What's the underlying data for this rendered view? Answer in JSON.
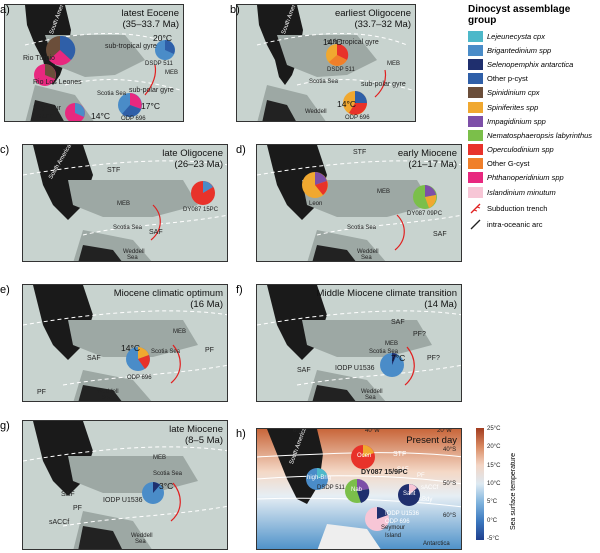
{
  "legend": {
    "title_line1": "Dinocyst assemblage",
    "title_line2": "group",
    "items": [
      {
        "label": "Lejeunecysta cpx",
        "color": "#4db8c9",
        "italic": true
      },
      {
        "label": "Brigantedinium spp",
        "color": "#4a8cc8",
        "italic": true
      },
      {
        "label": "Selenopemphix antarctica",
        "color": "#1f2f6e",
        "italic": true
      },
      {
        "label": "Other p-cyst",
        "color": "#2f5fa8",
        "italic": false
      },
      {
        "label": "Spinidinium cpx",
        "color": "#6b4e3a",
        "italic": true
      },
      {
        "label": "Spiniferites spp",
        "color": "#f0a830",
        "italic": true
      },
      {
        "label": "Impagidinium spp",
        "color": "#7d4fa8",
        "italic": true
      },
      {
        "label": "Nematosphaeropsis labyrinthus",
        "color": "#7bbf4a",
        "italic": true
      },
      {
        "label": "Operculodinium spp",
        "color": "#e8322a",
        "italic": true
      },
      {
        "label": "Other G-cyst",
        "color": "#f07f2a",
        "italic": false
      },
      {
        "label": "Phthanoperidinium spp",
        "color": "#e8287f",
        "italic": true
      },
      {
        "label": "Islandinium minutum",
        "color": "#f7c6d6",
        "italic": true
      }
    ],
    "subduction": "Subduction trench",
    "arc": "intra-oceanic arc"
  },
  "panels": [
    {
      "letter": "a)",
      "title1": "latest Eocene",
      "title2": "(35–33.7 Ma)"
    },
    {
      "letter": "b)",
      "title1": "earliest Oligocene",
      "title2": "(33.7–32 Ma)"
    },
    {
      "letter": "c)",
      "title1": "late Oligocene",
      "title2": "(26–23 Ma)"
    },
    {
      "letter": "d)",
      "title1": "early Miocene",
      "title2": "(21–17 Ma)"
    },
    {
      "letter": "e)",
      "title1": "Miocene climatic optimum",
      "title2": "(16 Ma)"
    },
    {
      "letter": "f)",
      "title1": "Middle Miocene climate transition",
      "title2": "(14 Ma)"
    },
    {
      "letter": "g)",
      "title1": "late Miocene",
      "title2": "(8–5 Ma)"
    },
    {
      "letter": "h)",
      "title1": "Present day",
      "title2": ""
    }
  ],
  "labels": {
    "a": {
      "rio_turbio": "Rio Turbio",
      "rio_leones": "Rio Los Leones",
      "seymour": "Seymour",
      "island": "Island",
      "subtrop": "sub-tropical gyre",
      "subpolar": "sub-polar gyre",
      "dsdp": "DSDP 511",
      "odp": "ODP 696",
      "meb": "MEB",
      "scotia": "Scotia Sea",
      "t1": "20°C",
      "t2": "17°C",
      "t3": "14°C",
      "sa": "South America"
    },
    "b": {
      "subtrop": "sub-tropical gyre",
      "subpolar": "sub-polar gyre",
      "dsdp": "DSDP 511",
      "odp": "ODP 696",
      "meb": "MEB",
      "scotia": "Scotia Sea",
      "weddell": "Weddell",
      "t1": "14°C",
      "t2": "14°C",
      "sa": "South America"
    },
    "c": {
      "stf": "STF",
      "meb": "MEB",
      "saf": "SAF",
      "dy": "DY087 15PC",
      "scotia": "Scotia Sea",
      "weddell": "Weddell",
      "sea": "Sea",
      "sa": "South America"
    },
    "d": {
      "stf": "STF",
      "meb": "MEB",
      "saf": "SAF",
      "dy": "DY087 09PC",
      "leon": "Leon",
      "scotia": "Scotia Sea",
      "weddell": "Weddell",
      "sea": "Sea"
    },
    "e": {
      "meb": "MEB",
      "saf": "SAF",
      "pf": "PF",
      "pf2": "PF",
      "scotia": "Scotia Sea",
      "odp": "ODP 696",
      "t1": "14°C",
      "weddell": "Weddell",
      "sea": "Sea"
    },
    "f": {
      "saf": "SAF",
      "saf2": "SAF",
      "pf1": "PF?",
      "pf2": "PF?",
      "meb": "MEB",
      "iodp": "IODP U1536",
      "t1": "7°C",
      "scotia": "Scotia Sea",
      "weddell": "Weddell",
      "sea": "Sea"
    },
    "g": {
      "meb": "MEB",
      "saf": "SAF",
      "pf": "PF",
      "sacc": "sACCf",
      "iodp": "IODP U1536",
      "t1": "3°C",
      "scotia": "Scotia Sea",
      "weddell": "Weddell",
      "sea": "Sea"
    },
    "h": {
      "lon60": "60°W",
      "lon40": "40°W",
      "lon20": "20°W",
      "lat40": "40°S",
      "lat50": "50°S",
      "lat60": "60°S",
      "stf": "STF",
      "saf": "SAF",
      "pf": "PF",
      "sacc": "sACCf",
      "sbdy": "sBdy",
      "dy": "DY087 15/9PC",
      "dsdp": "DSDP 511",
      "iodp": "IODP U1536",
      "odp": "ODP 696",
      "ocen": "Ocen",
      "high": "high-Brig",
      "nab": "Nab",
      "sant": "Sant",
      "seymour": "Seymour",
      "island": "Island",
      "antarctica": "Antarctica",
      "sa": "South America"
    }
  },
  "colorbar": {
    "title": "Sea surface temperature",
    "ticks": [
      "25°C",
      "20°C",
      "15°C",
      "10°C",
      "5°C",
      "0°C",
      "-5°C"
    ]
  }
}
